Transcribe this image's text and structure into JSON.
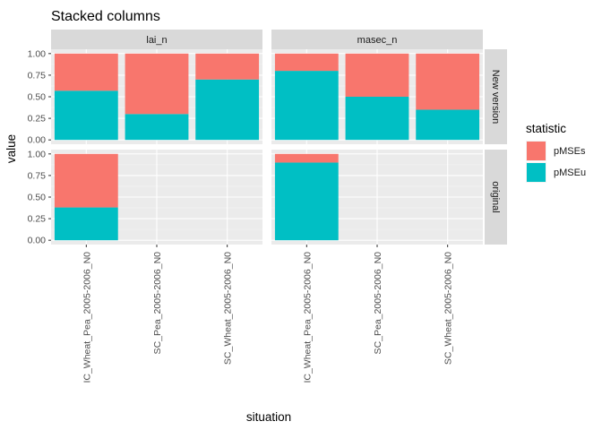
{
  "chart_data": {
    "type": "bar",
    "stacked": true,
    "title": "Stacked columns",
    "xlabel": "situation",
    "ylabel": "value",
    "ylim": [
      0,
      1.0
    ],
    "y_ticks": [
      0.0,
      0.25,
      0.5,
      0.75,
      1.0
    ],
    "y_tick_labels": [
      "0.00",
      "0.25",
      "0.50",
      "0.75",
      "1.00"
    ],
    "categories": [
      "IC_Wheat_Pea_2005-2006_N0",
      "SC_Pea_2005-2006_N0",
      "SC_Wheat_2005-2006_N0"
    ],
    "facet_columns": [
      "lai_n",
      "masec_n"
    ],
    "facet_rows": [
      "New version",
      "original"
    ],
    "legend": {
      "title": "statistic",
      "position": "right",
      "entries": [
        {
          "label": "pMSEs",
          "color": "#F8766D"
        },
        {
          "label": "pMSEu",
          "color": "#00BFC4"
        }
      ]
    },
    "panels": [
      {
        "col": "lai_n",
        "row": "New version",
        "series": [
          {
            "name": "pMSEu",
            "values": [
              0.57,
              0.3,
              0.7
            ]
          },
          {
            "name": "pMSEs",
            "values": [
              0.43,
              0.7,
              0.3
            ]
          }
        ]
      },
      {
        "col": "masec_n",
        "row": "New version",
        "series": [
          {
            "name": "pMSEu",
            "values": [
              0.8,
              0.5,
              0.35
            ]
          },
          {
            "name": "pMSEs",
            "values": [
              0.2,
              0.5,
              0.65
            ]
          }
        ]
      },
      {
        "col": "lai_n",
        "row": "original",
        "series": [
          {
            "name": "pMSEu",
            "values": [
              0.38,
              null,
              null
            ]
          },
          {
            "name": "pMSEs",
            "values": [
              0.62,
              null,
              null
            ]
          }
        ]
      },
      {
        "col": "masec_n",
        "row": "original",
        "series": [
          {
            "name": "pMSEu",
            "values": [
              0.9,
              null,
              null
            ]
          },
          {
            "name": "pMSEs",
            "values": [
              0.1,
              null,
              null
            ]
          }
        ]
      }
    ]
  }
}
